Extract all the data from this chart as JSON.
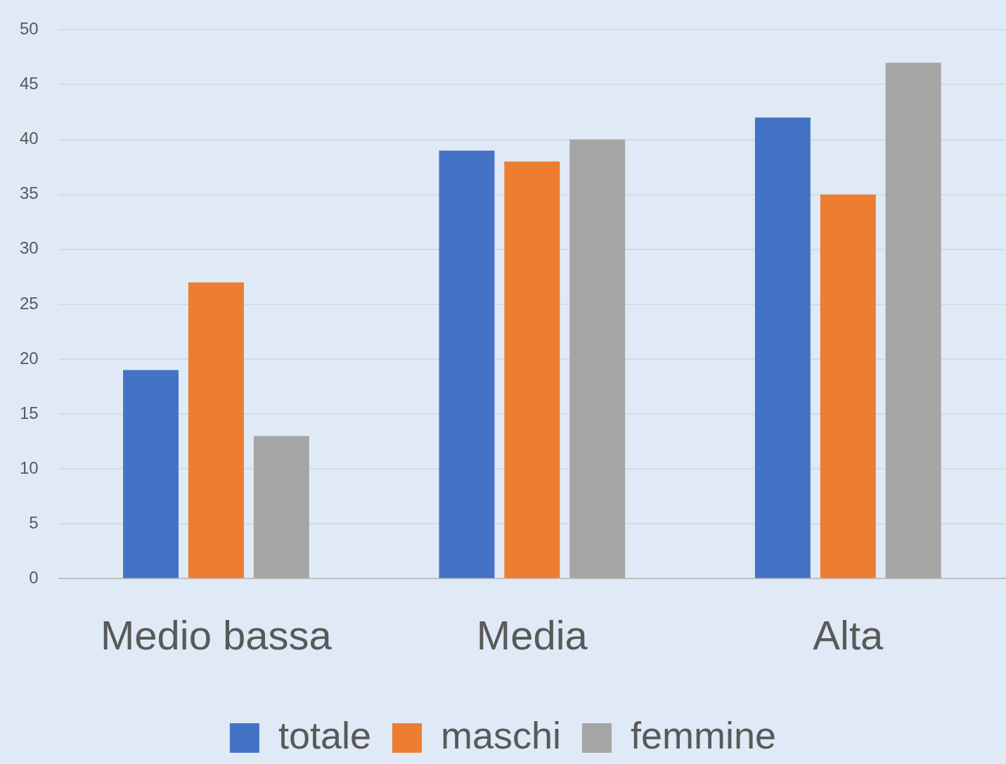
{
  "chart_data": {
    "type": "bar",
    "categories": [
      "Medio bassa",
      "Media",
      "Alta"
    ],
    "series": [
      {
        "name": "totale",
        "color": "#4472c4",
        "values": [
          19,
          39,
          42
        ]
      },
      {
        "name": "maschi",
        "color": "#ed7d31",
        "values": [
          27,
          38,
          35
        ]
      },
      {
        "name": "femmine",
        "color": "#a5a5a5",
        "values": [
          13,
          40,
          47
        ]
      }
    ],
    "ylim": [
      0,
      50
    ],
    "yticks": [
      0,
      5,
      10,
      15,
      20,
      25,
      30,
      35,
      40,
      45,
      50
    ],
    "grid": "y",
    "legend": "bottom"
  }
}
